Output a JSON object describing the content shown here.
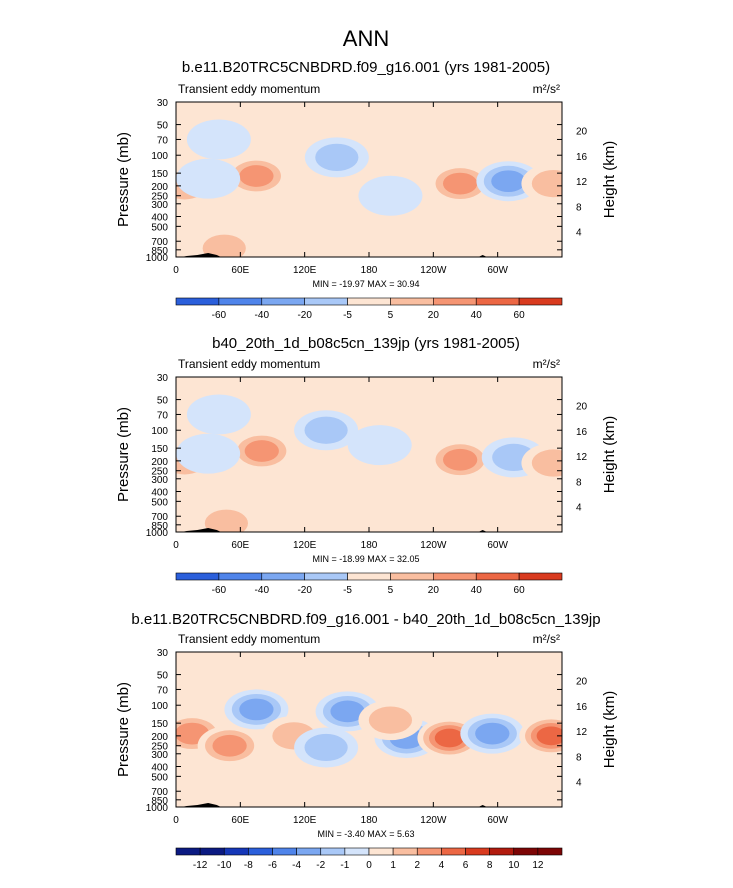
{
  "figure_title": "ANN",
  "chart_data": [
    {
      "type": "heatmap",
      "title": "b.e11.B20TRC5CNBDRD.f09_g16.001 (yrs 1981-2005)",
      "subtitle": "Transient eddy momentum",
      "units": "m²/s²",
      "ylabel": "Pressure (mb)",
      "y2label": "Height (km)",
      "pressure_ticks": [
        30,
        50,
        70,
        100,
        150,
        200,
        250,
        300,
        400,
        500,
        700,
        850,
        1000
      ],
      "height_ticks": [
        4,
        8,
        12,
        16,
        20
      ],
      "xlim": [
        0,
        360
      ],
      "ylim": [
        1000,
        30
      ],
      "y_scale": "log",
      "xticks": [
        {
          "lon": 0,
          "label": "0"
        },
        {
          "lon": 60,
          "label": "60E"
        },
        {
          "lon": 120,
          "label": "120E"
        },
        {
          "lon": 180,
          "label": "180"
        },
        {
          "lon": 240,
          "label": "120W"
        },
        {
          "lon": 300,
          "label": "60W"
        }
      ],
      "stats": "MIN = -19.97  MAX =  30.94",
      "contour_levels": [
        "-60",
        "-40",
        "-20",
        "-5",
        "5",
        "20",
        "40",
        "60"
      ],
      "colorbar_labels": [
        "-60",
        "-40",
        "-20",
        "-5",
        "5",
        "20",
        "40",
        "60"
      ],
      "features": [
        {
          "lon": 8,
          "p": 200,
          "value": 15
        },
        {
          "lon": 75,
          "p": 160,
          "value": 30
        },
        {
          "lon": 30,
          "p": 170,
          "value": -3
        },
        {
          "lon": 150,
          "p": 105,
          "value": -15
        },
        {
          "lon": 265,
          "p": 190,
          "value": 30
        },
        {
          "lon": 310,
          "p": 180,
          "value": -20
        },
        {
          "lon": 352,
          "p": 190,
          "value": 12
        },
        {
          "lon": 40,
          "p": 70,
          "value": -3
        },
        {
          "lon": 45,
          "p": 820,
          "value": 10
        },
        {
          "lon": 200,
          "p": 250,
          "value": -3
        }
      ]
    },
    {
      "type": "heatmap",
      "title": "b40_20th_1d_b08c5cn_139jp (yrs 1981-2005)",
      "subtitle": "Transient eddy momentum",
      "units": "m²/s²",
      "ylabel": "Pressure (mb)",
      "y2label": "Height (km)",
      "pressure_ticks": [
        30,
        50,
        70,
        100,
        150,
        200,
        250,
        300,
        400,
        500,
        700,
        850,
        1000
      ],
      "height_ticks": [
        4,
        8,
        12,
        16,
        20
      ],
      "xlim": [
        0,
        360
      ],
      "ylim": [
        1000,
        30
      ],
      "y_scale": "log",
      "xticks": [
        {
          "lon": 0,
          "label": "0"
        },
        {
          "lon": 60,
          "label": "60E"
        },
        {
          "lon": 120,
          "label": "120E"
        },
        {
          "lon": 180,
          "label": "180"
        },
        {
          "lon": 240,
          "label": "120W"
        },
        {
          "lon": 300,
          "label": "60W"
        }
      ],
      "stats": "MIN = -18.99  MAX =  32.05",
      "contour_levels": [
        "-60",
        "-40",
        "-20",
        "-5",
        "5",
        "20",
        "40",
        "60"
      ],
      "colorbar_labels": [
        "-60",
        "-40",
        "-20",
        "-5",
        "5",
        "20",
        "40",
        "60"
      ],
      "features": [
        {
          "lon": 8,
          "p": 200,
          "value": 14
        },
        {
          "lon": 80,
          "p": 160,
          "value": 31
        },
        {
          "lon": 30,
          "p": 170,
          "value": -3
        },
        {
          "lon": 140,
          "p": 100,
          "value": -14
        },
        {
          "lon": 265,
          "p": 195,
          "value": 30
        },
        {
          "lon": 315,
          "p": 185,
          "value": -19
        },
        {
          "lon": 352,
          "p": 210,
          "value": 14
        },
        {
          "lon": 40,
          "p": 70,
          "value": -3
        },
        {
          "lon": 47,
          "p": 820,
          "value": 10
        },
        {
          "lon": 190,
          "p": 140,
          "value": -3
        }
      ]
    },
    {
      "type": "heatmap",
      "title": "b.e11.B20TRC5CNBDRD.f09_g16.001 - b40_20th_1d_b08c5cn_139jp",
      "subtitle": "Transient eddy momentum",
      "units": "m²/s²",
      "ylabel": "Pressure (mb)",
      "y2label": "Height (km)",
      "pressure_ticks": [
        30,
        50,
        70,
        100,
        150,
        200,
        250,
        300,
        400,
        500,
        700,
        850,
        1000
      ],
      "height_ticks": [
        4,
        8,
        12,
        16,
        20
      ],
      "xlim": [
        0,
        360
      ],
      "ylim": [
        1000,
        30
      ],
      "y_scale": "log",
      "xticks": [
        {
          "lon": 0,
          "label": "0"
        },
        {
          "lon": 60,
          "label": "60E"
        },
        {
          "lon": 120,
          "label": "120E"
        },
        {
          "lon": 180,
          "label": "180"
        },
        {
          "lon": 240,
          "label": "120W"
        },
        {
          "lon": 300,
          "label": "60W"
        }
      ],
      "stats": "MIN = -3.40  MAX =  5.63",
      "contour_levels": [
        "-12",
        "-10",
        "-8",
        "-6",
        "-4",
        "-2",
        "-1",
        "0",
        "1",
        "2",
        "4",
        "6",
        "8",
        "10",
        "12"
      ],
      "colorbar_labels": [
        "-12",
        "-10",
        "-8",
        "-6",
        "-4",
        "-2",
        "-1",
        "0",
        "1",
        "2",
        "4",
        "6",
        "8",
        "10",
        "12"
      ],
      "features": [
        {
          "lon": 15,
          "p": 190,
          "value": 2.5
        },
        {
          "lon": 75,
          "p": 110,
          "value": -2.5
        },
        {
          "lon": 110,
          "p": 200,
          "value": 1.5
        },
        {
          "lon": 160,
          "p": 115,
          "value": -2
        },
        {
          "lon": 215,
          "p": 210,
          "value": -3.4
        },
        {
          "lon": 255,
          "p": 210,
          "value": 5.6
        },
        {
          "lon": 295,
          "p": 190,
          "value": -2
        },
        {
          "lon": 350,
          "p": 200,
          "value": 4
        },
        {
          "lon": 140,
          "p": 260,
          "value": -1.5
        },
        {
          "lon": 200,
          "p": 140,
          "value": 1.5
        },
        {
          "lon": 50,
          "p": 250,
          "value": 2
        }
      ]
    }
  ]
}
